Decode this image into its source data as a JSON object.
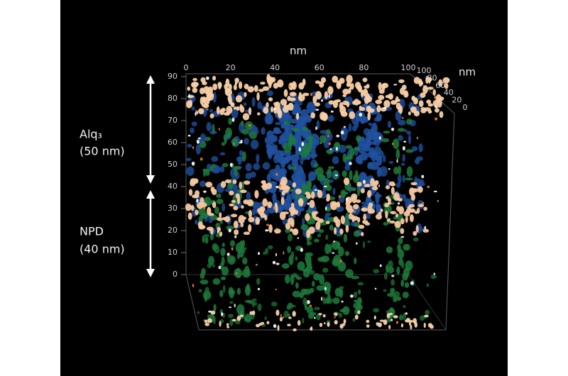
{
  "axes": {
    "top_label": "nm",
    "top_ticks": [
      0,
      20,
      40,
      60,
      80,
      100
    ],
    "depth_label": "nm",
    "depth_ticks": [
      100,
      80,
      60,
      40,
      20,
      0
    ],
    "vertical_ticks": [
      90,
      80,
      70,
      60,
      50,
      40,
      30,
      20,
      10,
      0
    ]
  },
  "annotations": [
    {
      "label": "Alq₃",
      "thickness": "(50 nm)"
    },
    {
      "label": "NPD",
      "thickness": "(40 nm)"
    }
  ]
}
